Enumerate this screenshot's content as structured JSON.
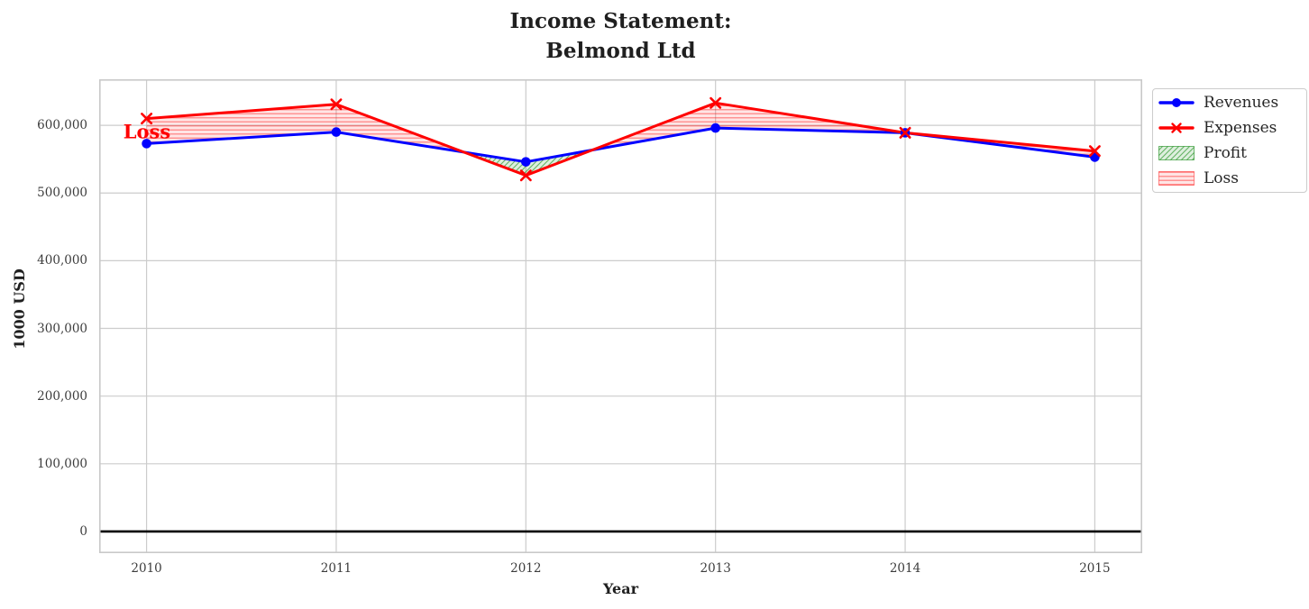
{
  "figure": {
    "title": "Income Statement:\nBelmond Ltd"
  },
  "chart_data": {
    "type": "line",
    "title": "Income Statement:\nBelmond Ltd",
    "xlabel": "Year",
    "ylabel": "1000 USD",
    "x": [
      2010,
      2011,
      2012,
      2013,
      2014,
      2015
    ],
    "series": [
      {
        "name": "Revenues",
        "color": "#0000ff",
        "marker": "circle",
        "line_width": 3,
        "values": [
          573000,
          590000,
          546000,
          596000,
          589000,
          553000
        ]
      },
      {
        "name": "Expenses",
        "color": "#ff0000",
        "marker": "x",
        "line_width": 3,
        "values": [
          610000,
          631000,
          526000,
          633000,
          589000,
          562000
        ]
      }
    ],
    "fills": [
      {
        "name": "Profit",
        "above": "Revenues",
        "below": "Expenses",
        "color": "#008000",
        "hatch": "diagonal"
      },
      {
        "name": "Loss",
        "above": "Expenses",
        "below": "Revenues",
        "color": "#ff0000",
        "hatch": "horizontal"
      }
    ],
    "annotation": {
      "text": "Loss",
      "color": "#ff0000",
      "x": 2010,
      "y": 591000
    },
    "yticks": [
      0,
      100000,
      200000,
      300000,
      400000,
      500000,
      600000
    ],
    "ytick_labels": [
      "0",
      "100,000",
      "200,000",
      "300,000",
      "400,000",
      "500,000",
      "600,000"
    ],
    "xticks": [
      2010,
      2011,
      2012,
      2013,
      2014,
      2015
    ],
    "xtick_labels": [
      "2010",
      "2011",
      "2012",
      "2013",
      "2014",
      "2015"
    ],
    "xlim": [
      2009.75,
      2015.25
    ],
    "ylim": [
      -32000,
      668000
    ],
    "grid": true,
    "zero_line": true,
    "legend": {
      "position": "outside-top-right",
      "items": [
        {
          "label": "Revenues",
          "swatch": "line-circle",
          "color": "#0000ff"
        },
        {
          "label": "Expenses",
          "swatch": "line-x",
          "color": "#ff0000"
        },
        {
          "label": "Profit",
          "swatch": "patch-diagonal",
          "color": "#008000"
        },
        {
          "label": "Loss",
          "swatch": "patch-horizontal",
          "color": "#ff0000"
        }
      ]
    }
  },
  "colors": {
    "grid": "#cccccc",
    "axes_border": "#c9c9c9",
    "zero_line": "#000000",
    "background": "#ffffff",
    "tick_text": "#3c3c3c",
    "title_text": "#1f1f1f"
  }
}
